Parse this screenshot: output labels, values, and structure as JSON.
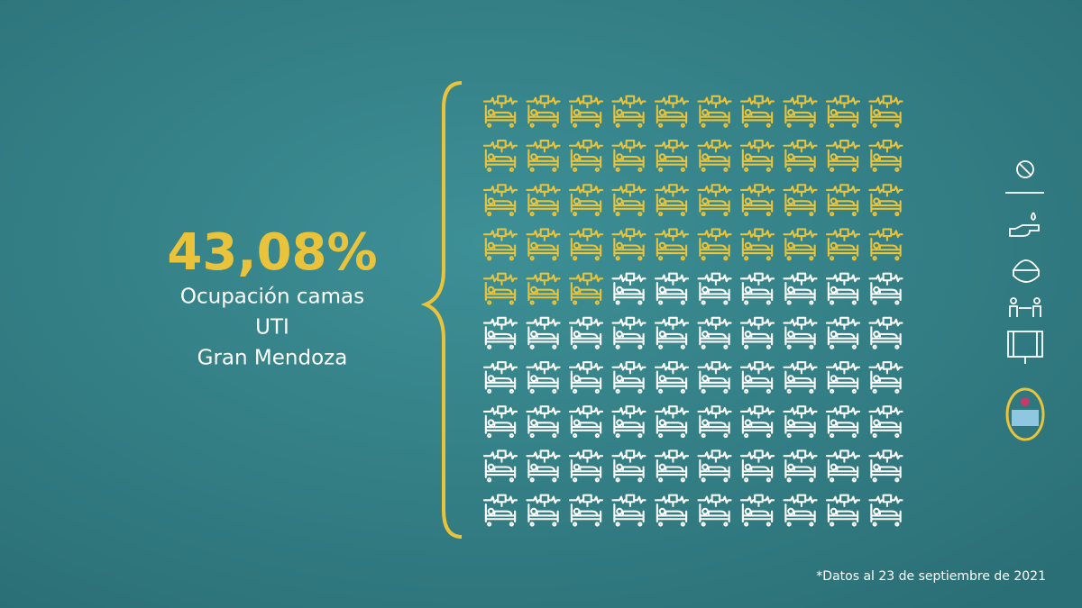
{
  "chart_data": {
    "type": "waffle",
    "values": [
      43.08
    ],
    "value_labels": [
      "43,08%"
    ],
    "label_lines": [
      "Ocupación camas",
      "UTI",
      "Gran Mendoza"
    ],
    "note": "*Datos al 23 de septiembre de 2021",
    "color": "#e9c33b",
    "rest_color": "#ffffff"
  }
}
